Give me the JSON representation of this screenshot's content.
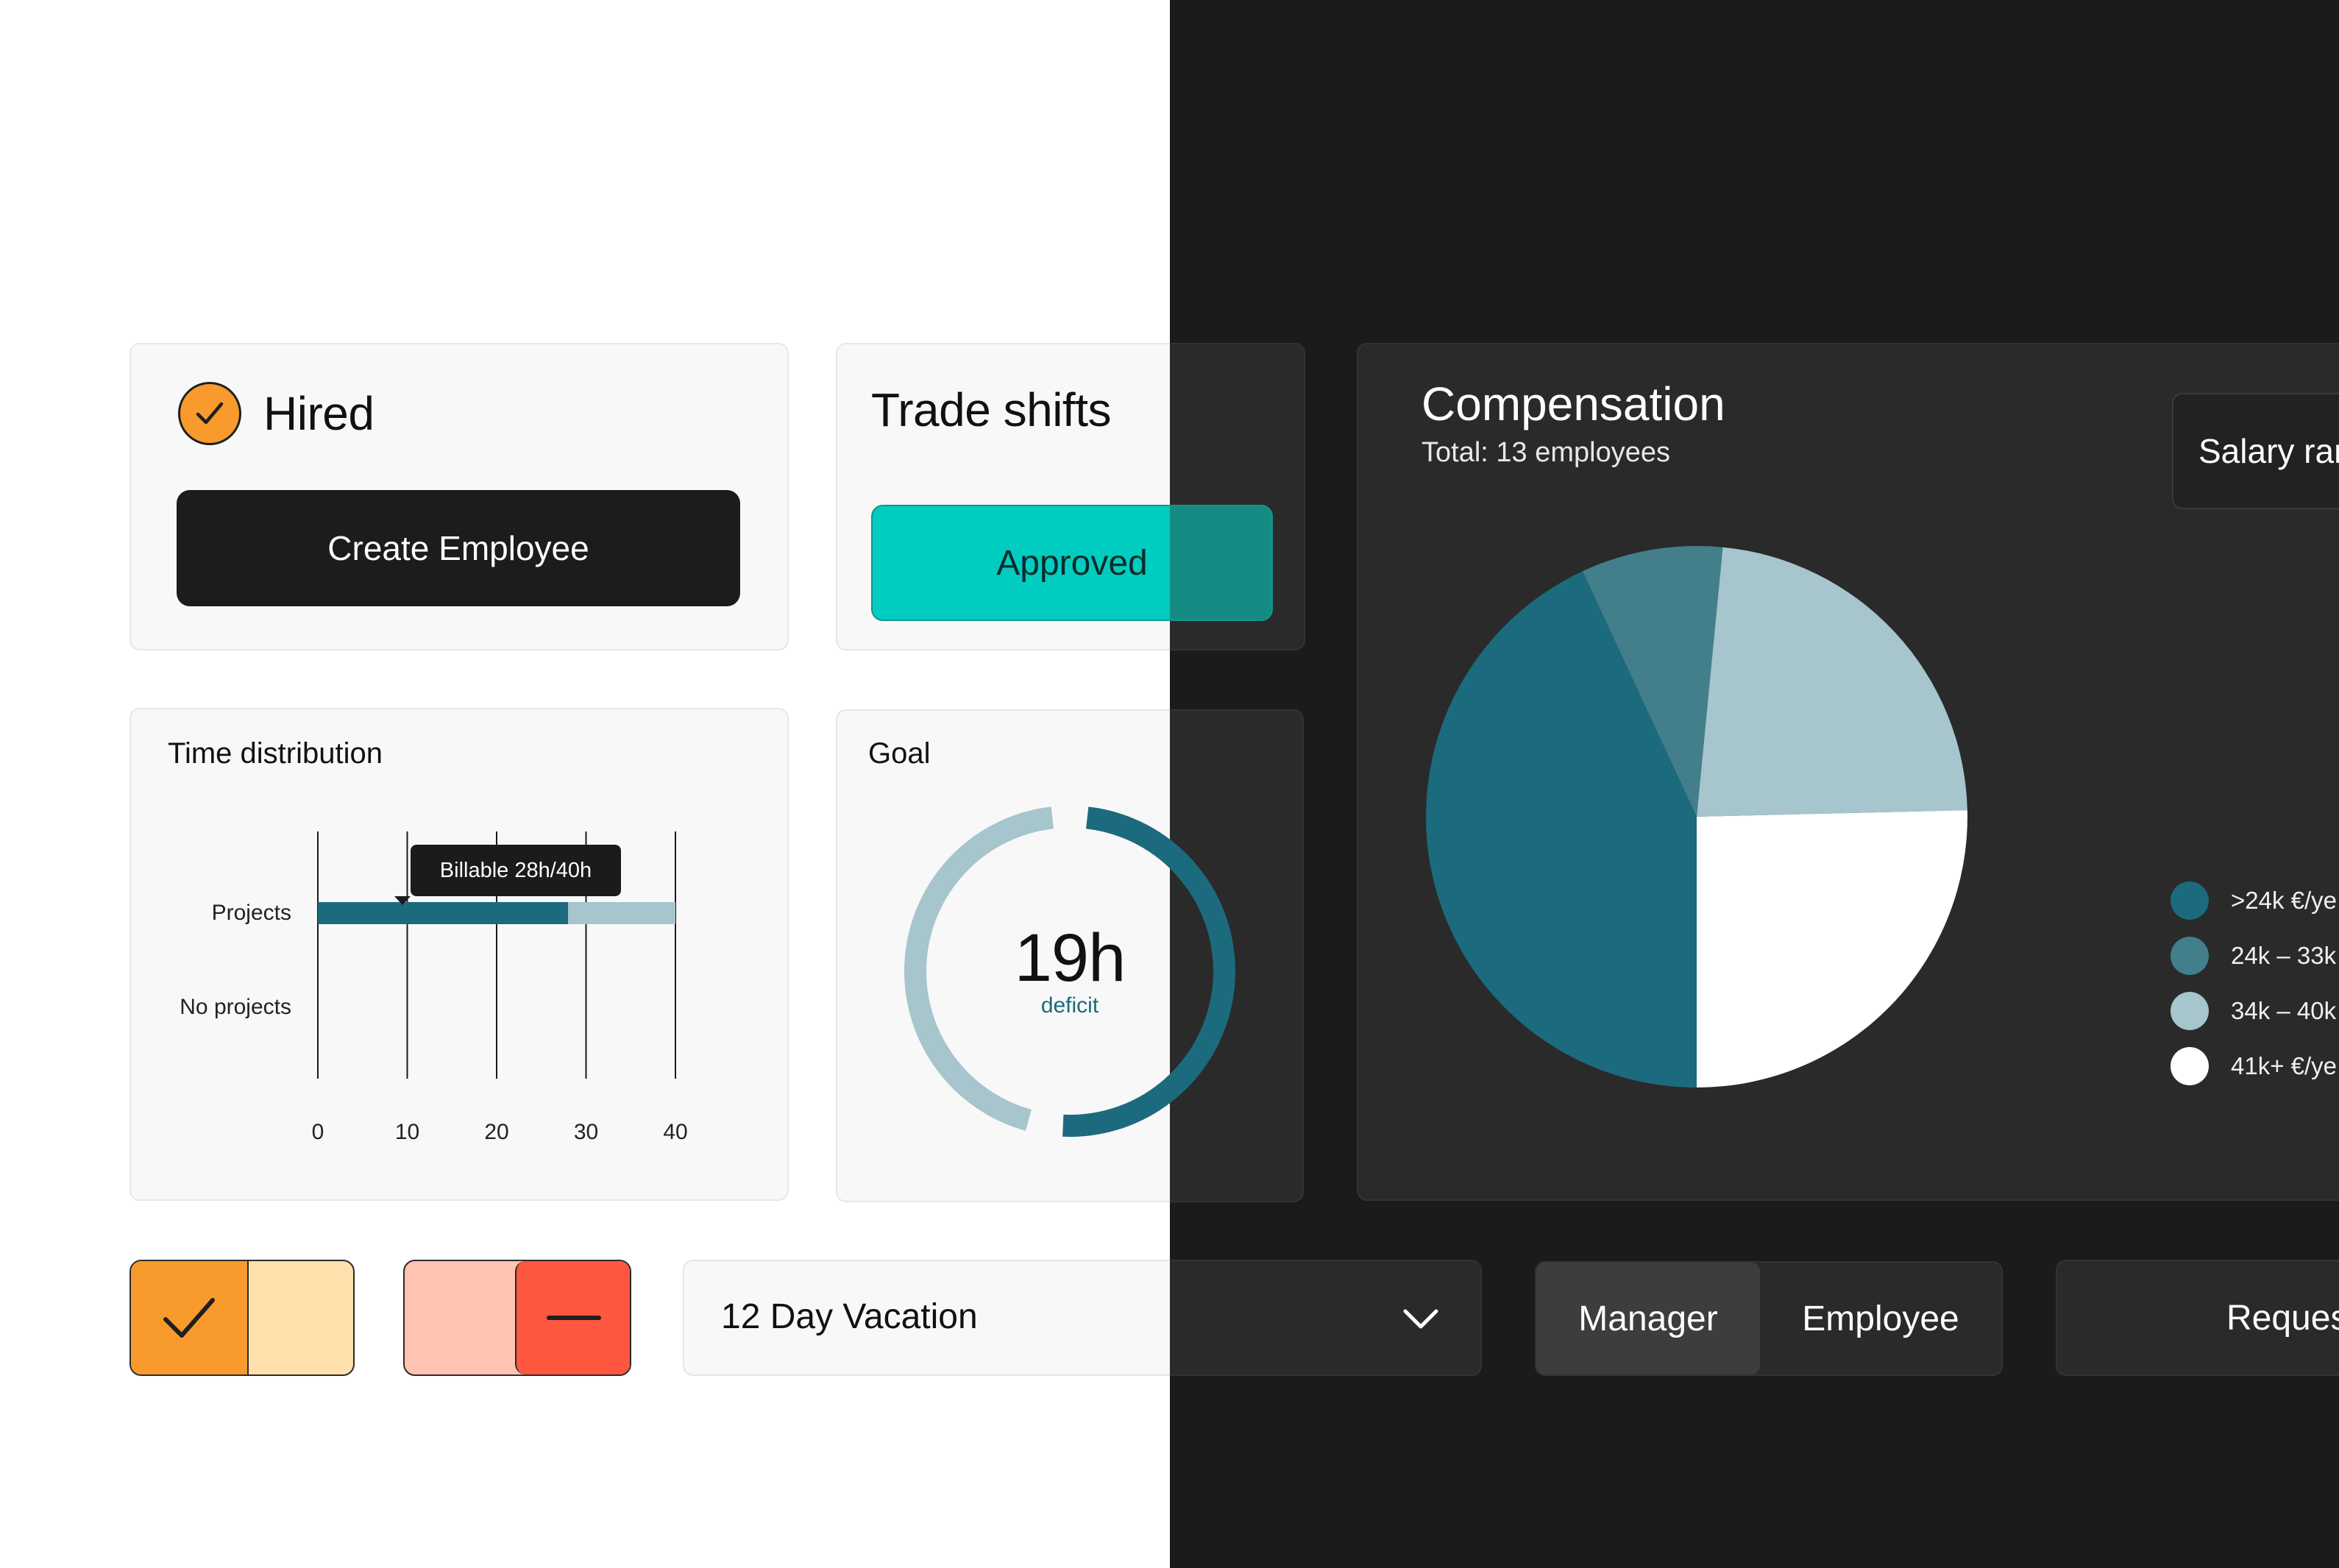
{
  "colors": {
    "accent_orange": "#f99a2c",
    "teal_approved": "#00cdbf",
    "teal_dark": "#1c6a7d",
    "teal_mid": "#427f8b",
    "teal_light": "#a6c5cd",
    "danger_red": "#ff5640"
  },
  "hired": {
    "icon": "check-circle-icon",
    "label": "Hired",
    "create_button": "Create Employee"
  },
  "trade_shifts": {
    "title": "Trade shifts",
    "status_button": "Approved"
  },
  "time_distribution": {
    "title": "Time distribution",
    "tooltip": "Billable 28h/40h"
  },
  "goal": {
    "title": "Goal",
    "value": "19h",
    "caption": "deficit",
    "progress": 0.525
  },
  "compensation": {
    "title": "Compensation",
    "subtitle": "Total: 13 employees",
    "filter_label": "Salary ran",
    "legend": [
      {
        "label": ">24k €/ye",
        "color": "#1c6a7d"
      },
      {
        "label": "24k – 33k",
        "color": "#427f8b"
      },
      {
        "label": "34k – 40k",
        "color": "#a6c5cd"
      },
      {
        "label": "41k+ €/ye",
        "color": "#ffffff"
      }
    ]
  },
  "chart_data": [
    {
      "type": "bar",
      "orientation": "horizontal",
      "stacked": true,
      "categories": [
        "Projects",
        "No projects"
      ],
      "x_ticks": [
        "0",
        "10",
        "20",
        "30",
        "40"
      ],
      "xlim": [
        0,
        40
      ],
      "series": [
        {
          "values": [
            28,
            0
          ],
          "color": "#1c6a7d"
        },
        {
          "values": [
            12,
            0
          ],
          "color": "#a6c5cd"
        }
      ],
      "grid": "vertical"
    },
    {
      "type": "pie",
      "slices": [
        {
          "label": ">24k €/ye",
          "value": 5.6,
          "color": "#1c6a7d"
        },
        {
          "label": "24k – 33k",
          "value": 1.1,
          "color": "#427f8b"
        },
        {
          "label": "34k – 40k",
          "value": 3.0,
          "color": "#a6c5cd"
        },
        {
          "label": "41k+ €/ye",
          "value": 3.3,
          "color": "#ffffff"
        }
      ],
      "legend": "right"
    }
  ],
  "toggles": {
    "approve": {
      "icon": "checkmark-icon",
      "state": "on"
    },
    "reject": {
      "icon": "minus-icon",
      "state": "on"
    }
  },
  "vacation_select": {
    "value": "12 Day Vacation",
    "icon": "chevron-down-icon"
  },
  "role_switch": {
    "options": [
      "Manager",
      "Employee"
    ],
    "selected": "Manager"
  },
  "request_button": {
    "label": "Reques"
  }
}
